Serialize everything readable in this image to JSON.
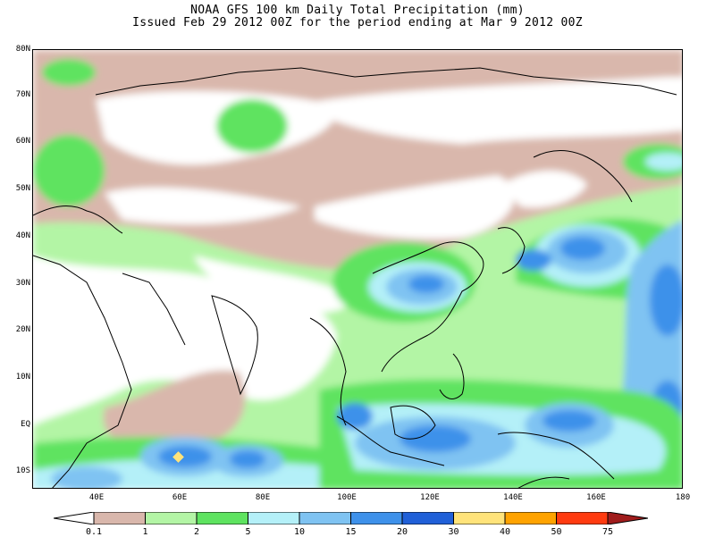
{
  "title": {
    "line1": "NOAA GFS 100 km Daily Total Precipitation (mm)",
    "line2": "Issued Feb 29 2012 00Z for the period ending at Mar 9 2012 00Z"
  },
  "lat_labels": [
    "80N",
    "70N",
    "60N",
    "50N",
    "40N",
    "30N",
    "20N",
    "10N",
    "EQ",
    "10S"
  ],
  "lon_labels": [
    "40E",
    "60E",
    "80E",
    "100E",
    "120E",
    "140E",
    "160E",
    "180"
  ],
  "legend": {
    "thresholds": [
      "0.1",
      "1",
      "2",
      "5",
      "10",
      "15",
      "20",
      "30",
      "40",
      "50",
      "75"
    ],
    "colors": [
      "#ffffff",
      "#d9b7ac",
      "#b3f5a5",
      "#5ee360",
      "#b4f0f8",
      "#7fc3f2",
      "#3e91ea",
      "#2060d8",
      "#ffe37a",
      "#ffa300",
      "#ff3b10",
      "#a01c1c"
    ]
  },
  "map": {
    "lat_range": [
      -14,
      80
    ],
    "lon_range": [
      24,
      180
    ],
    "marker_color": "#ffe37a"
  }
}
